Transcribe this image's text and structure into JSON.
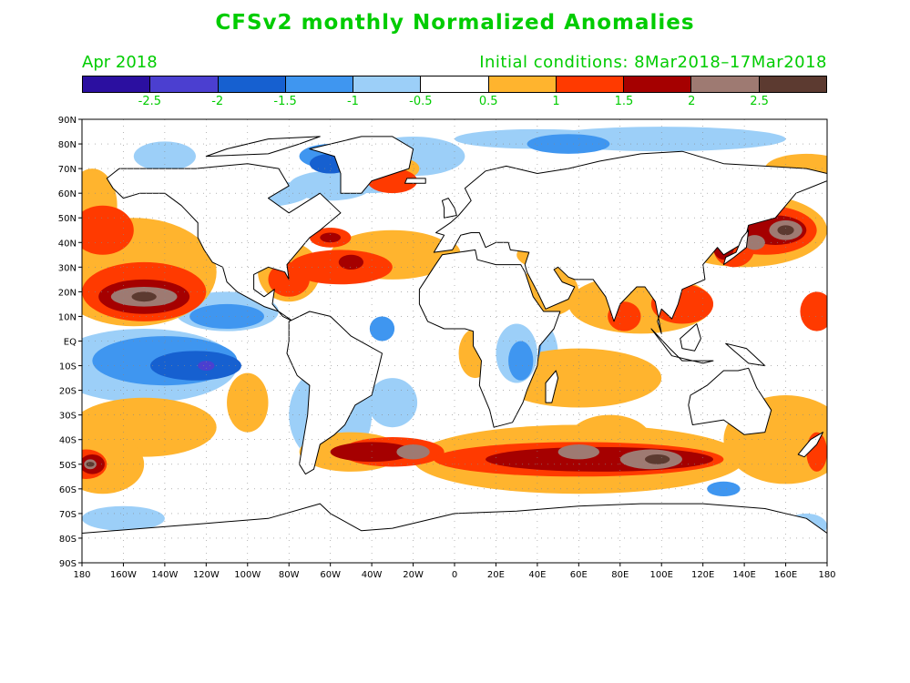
{
  "title": "CFSv2 monthly Normalized Anomalies",
  "subtitle_left": "Apr 2018",
  "subtitle_right": "Initial conditions: 8Mar2018–17Mar2018",
  "colorbar": {
    "colors": [
      "#2b0fa0",
      "#4b3fd0",
      "#1660d0",
      "#3f96f0",
      "#9ccff8",
      "#ffffff",
      "#ffb42e",
      "#ff3a00",
      "#a50000",
      "#9e7a72",
      "#5c3a30"
    ],
    "labels": [
      "-2.5",
      "-2",
      "-1.5",
      "-1",
      "-0.5",
      "0.5",
      "1",
      "1.5",
      "2",
      "2.5"
    ]
  },
  "lat_labels": [
    "90N",
    "80N",
    "70N",
    "60N",
    "50N",
    "40N",
    "30N",
    "20N",
    "10N",
    "EQ",
    "10S",
    "20S",
    "30S",
    "40S",
    "50S",
    "60S",
    "70S",
    "80S",
    "90S"
  ],
  "lon_labels": [
    "180",
    "160W",
    "140W",
    "120W",
    "100W",
    "80W",
    "60W",
    "40W",
    "20W",
    "0",
    "20E",
    "40E",
    "60E",
    "80E",
    "100E",
    "120E",
    "140E",
    "160E",
    "180"
  ],
  "map": {
    "variable": "sea-surface-temperature-anomaly",
    "grid": "dotted",
    "colors": {
      "land": "#ffffff",
      "coast": "#000000",
      "ocean_neutral": "#ffffff",
      "l1": "#ffb42e",
      "l2": "#ff3a00",
      "l3": "#a50000",
      "l4": "#9e7a72",
      "l5": "#5c3a30",
      "b1": "#9ccff8",
      "b2": "#3f96f0",
      "b3": "#1660d0",
      "b4": "#4b3fd0"
    }
  }
}
